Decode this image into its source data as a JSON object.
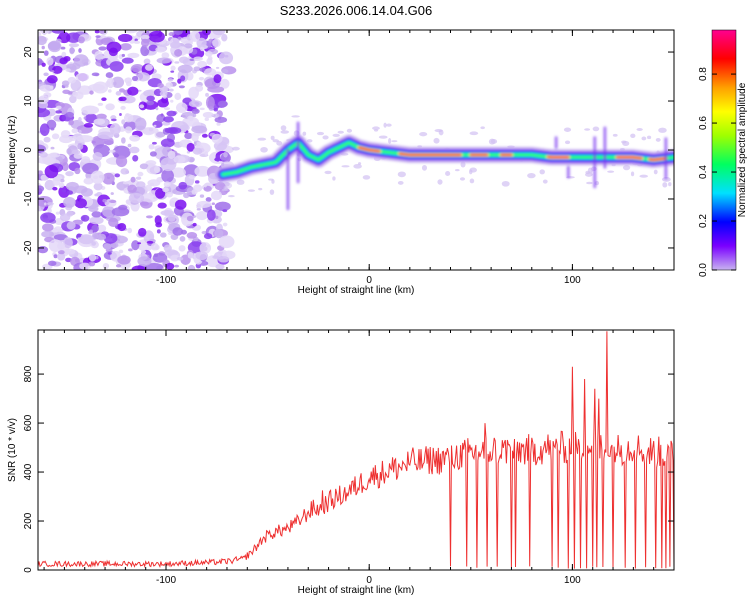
{
  "figure_title": "S233.2026.006.14.04.G06",
  "chart_data": [
    {
      "type": "heatmap",
      "title": "S233.2026.006.14.04.G06",
      "xlabel": "Height of straight line (km)",
      "ylabel": "Frequency (Hz)",
      "xlim": [
        -163,
        150
      ],
      "ylim": [
        -24.5,
        24.5
      ],
      "xticks": [
        -100,
        0,
        100
      ],
      "yticks": [
        -20,
        -10,
        0,
        10,
        20
      ],
      "noise_region_xmax": -72,
      "ridge": {
        "x": [
          -72,
          -65,
          -58,
          -52,
          -46,
          -40,
          -35,
          -30,
          -25,
          -20,
          -15,
          -10,
          -5,
          0,
          10,
          20,
          30,
          40,
          50,
          60,
          70,
          80,
          90,
          100,
          110,
          120,
          130,
          140,
          150
        ],
        "freq": [
          -5,
          -4.5,
          -3.5,
          -3,
          -2.5,
          0,
          1.5,
          -1,
          -2,
          -0.5,
          0.5,
          1.5,
          0.5,
          0,
          -0.5,
          -1,
          -1,
          -1,
          -1,
          -1,
          -1,
          -1,
          -1.5,
          -1.5,
          -1.5,
          -1.5,
          -1.5,
          -2,
          -1.5
        ]
      },
      "colorbar": {
        "label": "Normalized spectral amplitude",
        "ticks": [
          "0.0",
          "0.2",
          "0.4",
          "0.6",
          "0.8"
        ],
        "range": [
          0,
          0.98
        ],
        "colors": [
          "#c8b4f0",
          "#7a00ff",
          "#0000ff",
          "#00e0ff",
          "#00ff60",
          "#a0ff00",
          "#ffff00",
          "#ffa000",
          "#ff0000",
          "#ff0090"
        ]
      }
    },
    {
      "type": "line",
      "title": "",
      "xlabel": "Height of straight line (km)",
      "ylabel": "SNR (10 * v/v)",
      "xlim": [
        -163,
        150
      ],
      "ylim": [
        0,
        980
      ],
      "xticks": [
        -100,
        0,
        100
      ],
      "yticks": [
        0,
        200,
        400,
        600,
        800
      ],
      "line_color": "#ee3030",
      "series": [
        {
          "name": "SNR",
          "x": [
            -163,
            -150,
            -140,
            -130,
            -120,
            -110,
            -100,
            -90,
            -80,
            -70,
            -62,
            -57,
            -52,
            -48,
            -44,
            -40,
            -36,
            -32,
            -28,
            -24,
            -20,
            -15,
            -10,
            -5,
            0,
            5,
            10,
            15,
            20,
            25,
            30,
            35,
            40,
            45,
            50,
            55,
            60,
            70,
            80,
            90,
            100,
            110,
            120,
            130,
            140,
            150
          ],
          "y": [
            25,
            25,
            25,
            25,
            25,
            25,
            25,
            28,
            30,
            35,
            45,
            80,
            130,
            150,
            160,
            170,
            190,
            220,
            250,
            250,
            280,
            300,
            320,
            350,
            380,
            390,
            410,
            420,
            440,
            440,
            450,
            450,
            460,
            470,
            480,
            480,
            490,
            490,
            490,
            500,
            500,
            500,
            490,
            500,
            480,
            480
          ]
        }
      ],
      "spikes_up": [
        {
          "x": 100,
          "y": 830
        },
        {
          "x": 106,
          "y": 780
        },
        {
          "x": 111,
          "y": 740
        },
        {
          "x": 117,
          "y": 975
        },
        {
          "x": 113,
          "y": 700
        },
        {
          "x": 57,
          "y": 600
        },
        {
          "x": -23,
          "y": 325
        }
      ],
      "dropouts": [
        40,
        48,
        53,
        58,
        63,
        70,
        72,
        79,
        90,
        93,
        98,
        101,
        104,
        107,
        110,
        112,
        115,
        120,
        126,
        131,
        136,
        141,
        144,
        146,
        148,
        150
      ]
    }
  ]
}
